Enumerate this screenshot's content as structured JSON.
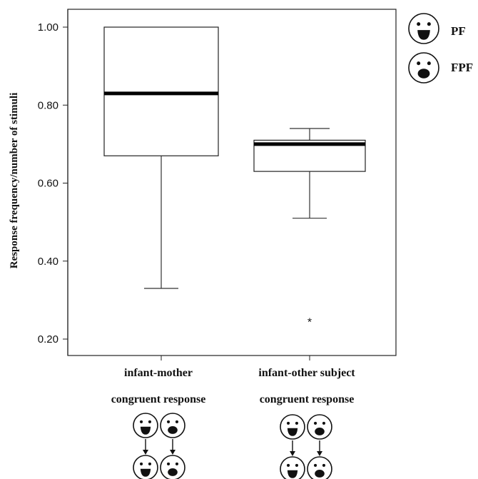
{
  "chart_data": {
    "type": "boxplot",
    "ylabel": "Response frequency/number of stimuli",
    "xlabel": "",
    "ylim": [
      0.18,
      1.04
    ],
    "yticks": [
      "0.20",
      "0.40",
      "0.60",
      "0.80",
      "1.00"
    ],
    "grid": false,
    "categories": [
      {
        "line1": "infant-mother",
        "line2": "congruent response"
      },
      {
        "line1": "infant-other subject",
        "line2": "congruent response"
      }
    ],
    "boxes": [
      {
        "min": 0.33,
        "q1": 0.67,
        "median": 0.83,
        "q3": 1.0,
        "max": 1.0,
        "outliers": []
      },
      {
        "min": 0.51,
        "q1": 0.63,
        "median": 0.7,
        "q3": 0.71,
        "max": 0.74,
        "outliers": [
          0.25
        ]
      }
    ],
    "outlier_symbol": "*",
    "legend": {
      "placement": "top-right, outside plot",
      "items": [
        {
          "label": "PF",
          "icon": "smiling-face-icon"
        },
        {
          "label": "FPF",
          "icon": "surprised-face-icon"
        }
      ]
    },
    "face_diagrams": [
      {
        "icons": [
          "smiling-face-icon",
          "surprised-face-icon",
          "smiling-face-icon",
          "surprised-face-icon"
        ]
      },
      {
        "icons": [
          "smiling-face-icon",
          "surprised-face-icon",
          "smiling-face-icon",
          "surprised-face-icon"
        ]
      }
    ]
  }
}
